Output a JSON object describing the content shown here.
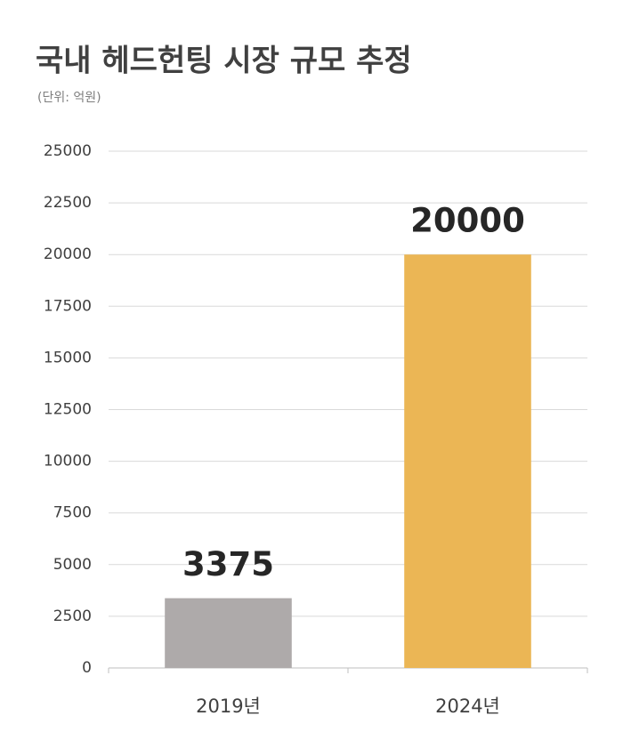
{
  "chart_data": {
    "type": "bar",
    "title": "국내 헤드헌팅 시장 규모 추정",
    "subtitle": "(단위: 억원)",
    "categories": [
      "2019년",
      "2024년"
    ],
    "values": [
      3375,
      20000
    ],
    "colors": [
      "#aeaaaa",
      "#ebb655"
    ],
    "ylim": [
      0,
      25000
    ],
    "yticks": [
      0,
      2500,
      5000,
      7500,
      10000,
      12500,
      15000,
      17500,
      20000,
      22500,
      25000
    ],
    "grid": true,
    "data_labels": true
  }
}
